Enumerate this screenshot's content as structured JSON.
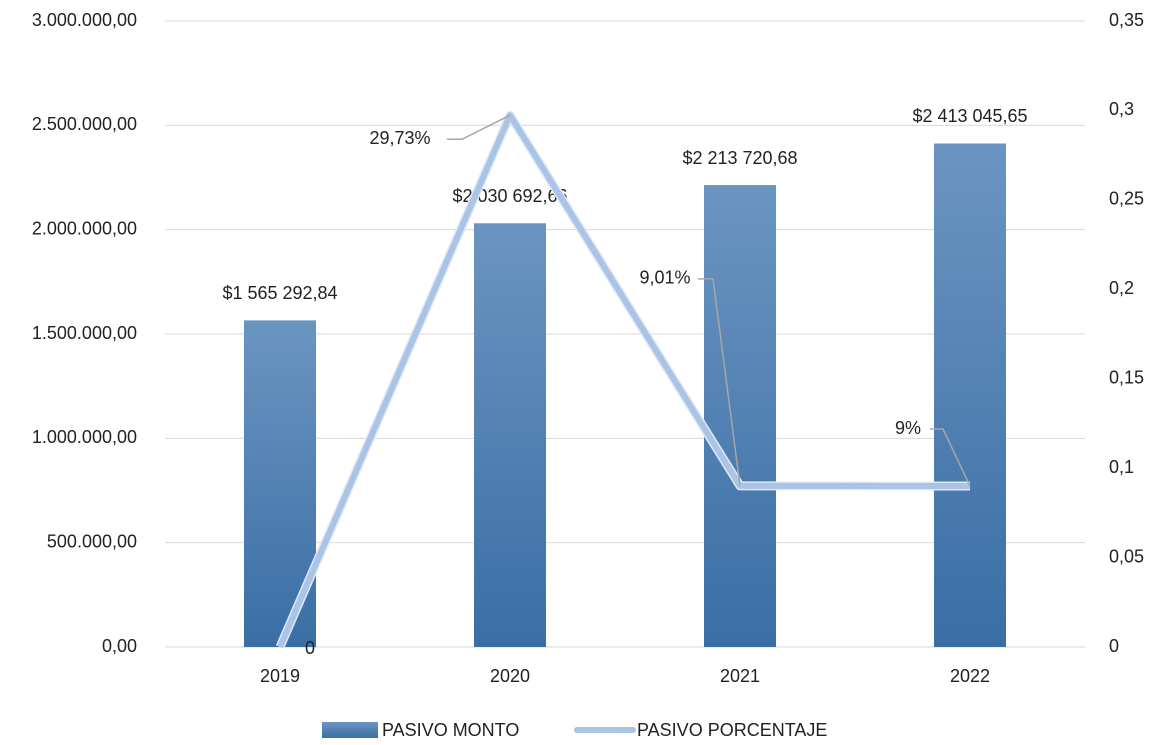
{
  "chart_data": {
    "type": "combo",
    "categories": [
      "2019",
      "2020",
      "2021",
      "2022"
    ],
    "series": [
      {
        "name": "PASIVO MONTO",
        "type": "bar",
        "color": "#4a7fb5",
        "values": [
          1565292.84,
          2030692.66,
          2213720.68,
          2413045.65
        ],
        "value_labels": [
          "$1 565 292,84",
          "$2 030 692,66",
          "$2 213 720,68",
          "$2 413 045,65"
        ]
      },
      {
        "name": "PASIVO PORCENTAJE",
        "type": "line",
        "color": "#a9c4e6",
        "axis": "y2",
        "values": [
          0,
          0.2973,
          0.0901,
          0.09
        ],
        "value_labels": [
          "0",
          "29,73%",
          "9,01%",
          "9%"
        ]
      }
    ],
    "ylim": [
      0,
      3000000
    ],
    "yticks": [
      {
        "value": 0,
        "label": "0,00"
      },
      {
        "value": 500000,
        "label": "500.000,00"
      },
      {
        "value": 1000000,
        "label": "1.000.000,00"
      },
      {
        "value": 1500000,
        "label": "1.500.000,00"
      },
      {
        "value": 2000000,
        "label": "2.000.000,00"
      },
      {
        "value": 2500000,
        "label": "2.500.000,00"
      },
      {
        "value": 3000000,
        "label": "3.000.000,00"
      }
    ],
    "y2lim": [
      0,
      0.35
    ],
    "y2ticks": [
      0,
      {
        "value": 0.05,
        "label": "0,05"
      },
      {
        "value": 0.1,
        "label": "0,1"
      },
      {
        "value": 0.15,
        "label": "0,15"
      },
      {
        "value": 0.2,
        "label": "0,2"
      },
      {
        "value": 0.25,
        "label": "0,25"
      },
      {
        "value": 0.3,
        "label": "0,3"
      },
      {
        "value": 0.35,
        "label": "0,35"
      }
    ],
    "grid": true,
    "legend": "bottom"
  }
}
